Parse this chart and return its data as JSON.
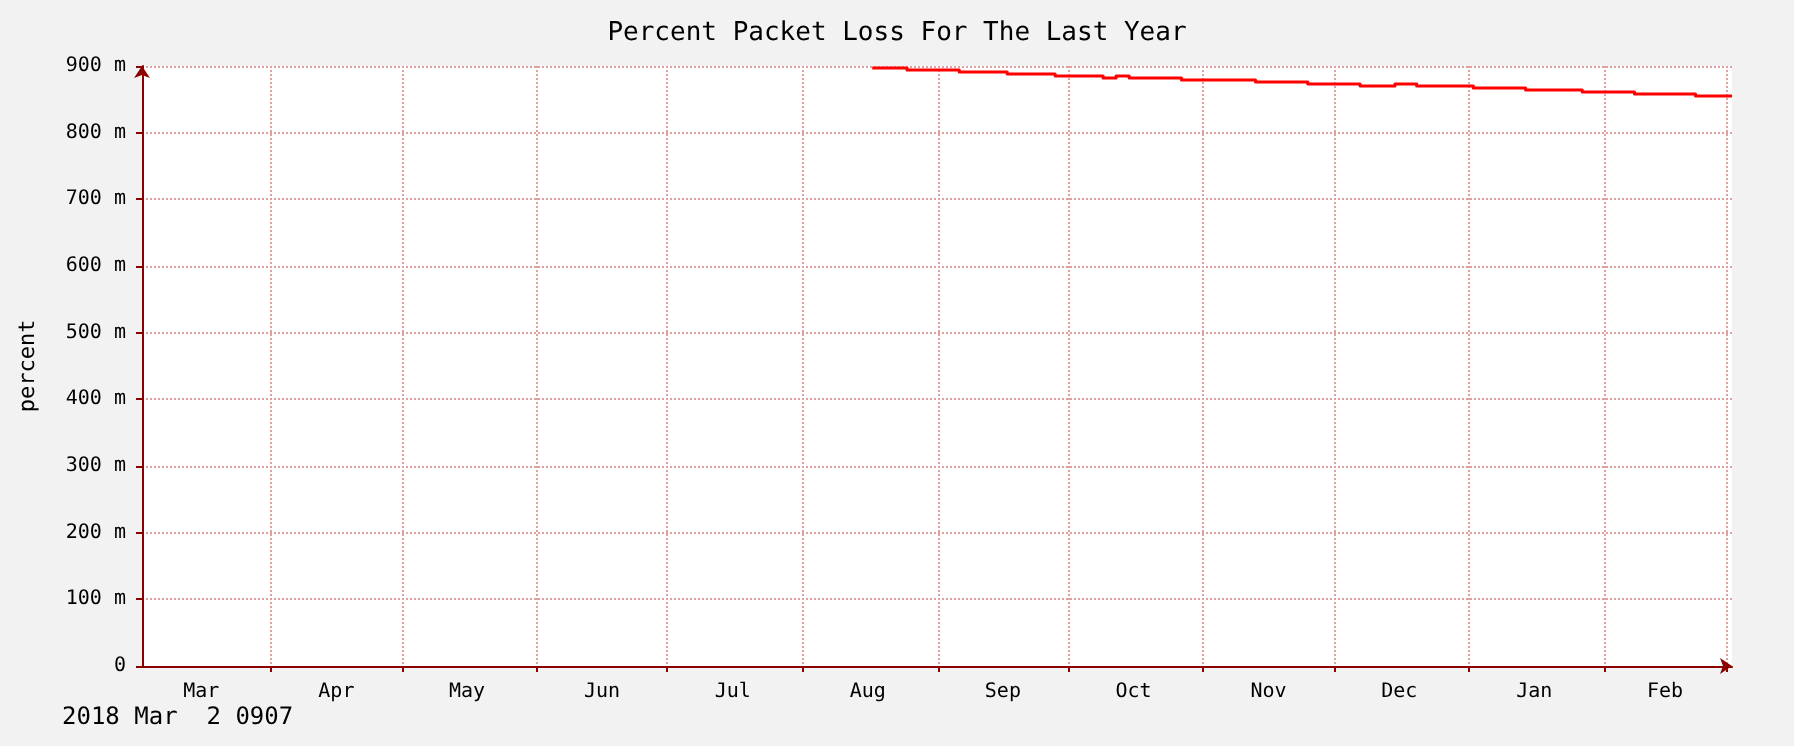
{
  "chart_data": {
    "type": "step",
    "title": "Percent Packet Loss For The Last Year",
    "ylabel": "percent",
    "annotations": [
      "2018 Mar  2 0907"
    ],
    "x": [
      "2017-08-17",
      "2017-08-25",
      "2017-09-06",
      "2017-09-17",
      "2017-09-28",
      "2017-10-09",
      "2017-10-12",
      "2017-10-15",
      "2017-10-27",
      "2017-11-13",
      "2017-11-25",
      "2017-12-07",
      "2017-12-15",
      "2017-12-20",
      "2018-01-02",
      "2018-01-14",
      "2018-01-27",
      "2018-02-08",
      "2018-02-22",
      "2018-03-02T09:07"
    ],
    "series": [
      {
        "color": "#ff0000",
        "values": [
          897,
          894,
          891,
          888,
          885,
          882,
          885,
          882,
          879,
          876,
          873,
          870,
          873,
          870,
          867,
          864,
          861,
          858,
          855,
          855
        ]
      }
    ],
    "xlim": [
      "2017-03-02T09:07",
      "2018-03-02T09:07"
    ],
    "xticks": [
      {
        "value": "2017-03-16",
        "label": "Mar"
      },
      {
        "value": "2017-04-01",
        "label": null
      },
      {
        "value": "2017-04-16",
        "label": "Apr"
      },
      {
        "value": "2017-05-01",
        "label": null
      },
      {
        "value": "2017-05-16",
        "label": "May"
      },
      {
        "value": "2017-06-01",
        "label": null
      },
      {
        "value": "2017-06-16",
        "label": "Jun"
      },
      {
        "value": "2017-07-01",
        "label": null
      },
      {
        "value": "2017-07-16",
        "label": "Jul"
      },
      {
        "value": "2017-08-01",
        "label": null
      },
      {
        "value": "2017-08-16",
        "label": "Aug"
      },
      {
        "value": "2017-09-01",
        "label": null
      },
      {
        "value": "2017-09-16",
        "label": "Sep"
      },
      {
        "value": "2017-10-01",
        "label": null
      },
      {
        "value": "2017-10-16",
        "label": "Oct"
      },
      {
        "value": "2017-11-01",
        "label": null
      },
      {
        "value": "2017-11-16",
        "label": "Nov"
      },
      {
        "value": "2017-12-01",
        "label": null
      },
      {
        "value": "2017-12-16",
        "label": "Dec"
      },
      {
        "value": "2018-01-01",
        "label": null
      },
      {
        "value": "2018-01-16",
        "label": "Jan"
      },
      {
        "value": "2018-02-01",
        "label": null
      },
      {
        "value": "2018-02-15",
        "label": "Feb"
      },
      {
        "value": "2018-03-01",
        "label": null
      }
    ],
    "ylim": [
      0,
      900
    ],
    "yticks": [
      0,
      {
        "value": 100,
        "label": "100 m"
      },
      {
        "value": 200,
        "label": "200 m"
      },
      {
        "value": 300,
        "label": "300 m"
      },
      {
        "value": 400,
        "label": "400 m"
      },
      {
        "value": 500,
        "label": "500 m"
      },
      {
        "value": 600,
        "label": "600 m"
      },
      {
        "value": 700,
        "label": "700 m"
      },
      {
        "value": 800,
        "label": "800 m"
      },
      {
        "value": 900,
        "label": "900 m"
      }
    ],
    "grid": true,
    "line_style": "solid",
    "marker": "none"
  }
}
